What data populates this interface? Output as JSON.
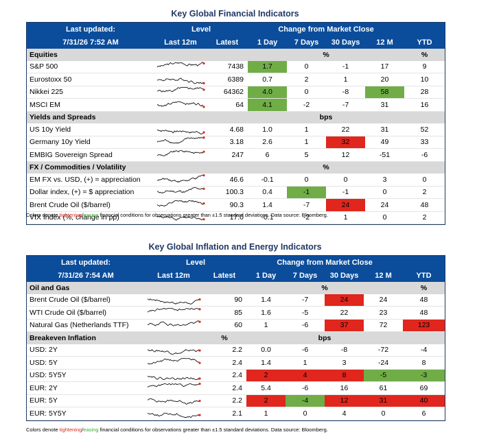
{
  "panel1": {
    "title": "Key Global Financial Indicators",
    "header": {
      "last_updated_label": "Last updated:",
      "last_updated_value": "7/31/26 7:52 AM",
      "level": "Level",
      "last12m": "Last 12m",
      "latest": "Latest",
      "change": "Change from Market Close",
      "d1": "1 Day",
      "d7": "7 Days",
      "d30": "30 Days",
      "m12": "12 M",
      "ytd": "YTD"
    },
    "sections": [
      {
        "name": "Equities",
        "unit_change": "%",
        "unit_ytd": "%",
        "unit_level": "",
        "rows": [
          {
            "name": "S&P 500",
            "latest": "7438",
            "d1": "1.7",
            "d7": "0",
            "d30": "-1",
            "m12": "17",
            "ytd": "9",
            "hl": {
              "d1": "green"
            }
          },
          {
            "name": "Eurostoxx 50",
            "latest": "6389",
            "d1": "0.7",
            "d7": "2",
            "d30": "1",
            "m12": "20",
            "ytd": "10",
            "hl": {}
          },
          {
            "name": "Nikkei 225",
            "latest": "64362",
            "d1": "4.0",
            "d7": "0",
            "d30": "-8",
            "m12": "58",
            "ytd": "28",
            "hl": {
              "d1": "green",
              "m12": "green"
            }
          },
          {
            "name": "MSCI EM",
            "latest": "64",
            "d1": "4.1",
            "d7": "-2",
            "d30": "-7",
            "m12": "31",
            "ytd": "16",
            "hl": {
              "d1": "green"
            }
          }
        ]
      },
      {
        "name": "Yields and Spreads",
        "unit_change": "bps",
        "unit_ytd": "",
        "unit_level": "",
        "rows": [
          {
            "name": "US 10y Yield",
            "latest": "4.68",
            "d1": "1.0",
            "d7": "1",
            "d30": "22",
            "m12": "31",
            "ytd": "52",
            "hl": {}
          },
          {
            "name": "Germany 10y Yield",
            "latest": "3.18",
            "d1": "2.6",
            "d7": "1",
            "d30": "32",
            "m12": "49",
            "ytd": "33",
            "hl": {
              "d30": "red"
            }
          },
          {
            "name": "EMBIG Sovereign Spread",
            "latest": "247",
            "d1": "6",
            "d7": "5",
            "d30": "12",
            "m12": "-51",
            "ytd": "-6",
            "hl": {}
          }
        ]
      },
      {
        "name": "FX / Commodities / Volatility",
        "unit_change": "%",
        "unit_ytd": "",
        "unit_level": "",
        "rows": [
          {
            "name": "EM FX vs. USD, (+) = appreciation",
            "latest": "46.6",
            "d1": "-0.1",
            "d7": "0",
            "d30": "0",
            "m12": "3",
            "ytd": "0",
            "hl": {}
          },
          {
            "name": "Dollar index, (+) = $ appreciation",
            "latest": "100.3",
            "d1": "0.4",
            "d7": "-1",
            "d30": "-1",
            "m12": "0",
            "ytd": "2",
            "hl": {
              "d7": "green"
            }
          },
          {
            "name": "Brent Crude Oil ($/barrel)",
            "latest": "90.3",
            "d1": "1.4",
            "d7": "-7",
            "d30": "24",
            "m12": "24",
            "ytd": "48",
            "hl": {
              "d30": "red"
            }
          },
          {
            "name": "VIX Index (%, change in pp)",
            "latest": "17.0",
            "d1": "-0.1",
            "d7": "-2",
            "d30": "1",
            "m12": "0",
            "ytd": "2",
            "hl": {}
          }
        ]
      }
    ],
    "note": {
      "pre": "Colors denote ",
      "tight": "tightening",
      "slash": "/",
      "ease": "easing",
      "post": " financial conditions for observations greater than ±1.5 standard deviations. Data source: Bloomberg."
    }
  },
  "panel2": {
    "title": "Key Global Inflation and Energy Indicators",
    "header": {
      "last_updated_label": "Last updated:",
      "last_updated_value": "7/31/26 7:54 AM",
      "level": "Level",
      "last12m": "Last 12m",
      "latest": "Latest",
      "change": "Change from Market Close",
      "d1": "1 Day",
      "d7": "7 Days",
      "d30": "30 Days",
      "m12": "12 M",
      "ytd": "YTD"
    },
    "sections": [
      {
        "name": "Oil and Gas",
        "unit_change": "%",
        "unit_ytd": "%",
        "unit_level": "",
        "rows": [
          {
            "name": "Brent Crude Oil ($/barrel)",
            "latest": "90",
            "d1": "1.4",
            "d7": "-7",
            "d30": "24",
            "m12": "24",
            "ytd": "48",
            "hl": {
              "d30": "red"
            }
          },
          {
            "name": "WTI Crude Oil ($/barrel)",
            "latest": "85",
            "d1": "1.6",
            "d7": "-5",
            "d30": "22",
            "m12": "23",
            "ytd": "48",
            "hl": {}
          },
          {
            "name": "Natural Gas (Netherlands TTF)",
            "latest": "60",
            "d1": "1",
            "d7": "-6",
            "d30": "37",
            "m12": "72",
            "ytd": "123",
            "hl": {
              "d30": "red",
              "ytd": "red"
            }
          }
        ]
      },
      {
        "name": "Breakeven Inflation",
        "unit_change": "bps",
        "unit_ytd": "",
        "unit_level": "%",
        "rows": [
          {
            "name": "USD: 2Y",
            "latest": "2.2",
            "d1": "0.0",
            "d7": "-6",
            "d30": "-8",
            "m12": "-72",
            "ytd": "-4",
            "hl": {}
          },
          {
            "name": "USD: 5Y",
            "latest": "2.4",
            "d1": "1.4",
            "d7": "1",
            "d30": "3",
            "m12": "-24",
            "ytd": "8",
            "hl": {}
          },
          {
            "name": "USD: 5Y5Y",
            "latest": "2.4",
            "d1": "2",
            "d7": "4",
            "d30": "8",
            "m12": "-5",
            "ytd": "-3",
            "hl": {
              "d1": "red",
              "d7": "red",
              "d30": "red",
              "m12": "green",
              "ytd": "green"
            }
          },
          {
            "name": "EUR: 2Y",
            "latest": "2.4",
            "d1": "5.4",
            "d7": "-6",
            "d30": "16",
            "m12": "61",
            "ytd": "69",
            "hl": {}
          },
          {
            "name": "EUR: 5Y",
            "latest": "2.2",
            "d1": "2",
            "d7": "-4",
            "d30": "12",
            "m12": "31",
            "ytd": "40",
            "hl": {
              "d1": "red",
              "d7": "green",
              "d30": "red",
              "m12": "red",
              "ytd": "red"
            }
          },
          {
            "name": "EUR: 5Y5Y",
            "latest": "2.1",
            "d1": "1",
            "d7": "0",
            "d30": "4",
            "m12": "0",
            "ytd": "6",
            "hl": {}
          }
        ]
      }
    ],
    "note": {
      "pre": "Colors denote ",
      "tight": "tightening",
      "slash": "/",
      "ease": "easing",
      "post": " financial conditions for observations greater than ±1.5 standard deviations. Data source: Bloomberg."
    }
  }
}
